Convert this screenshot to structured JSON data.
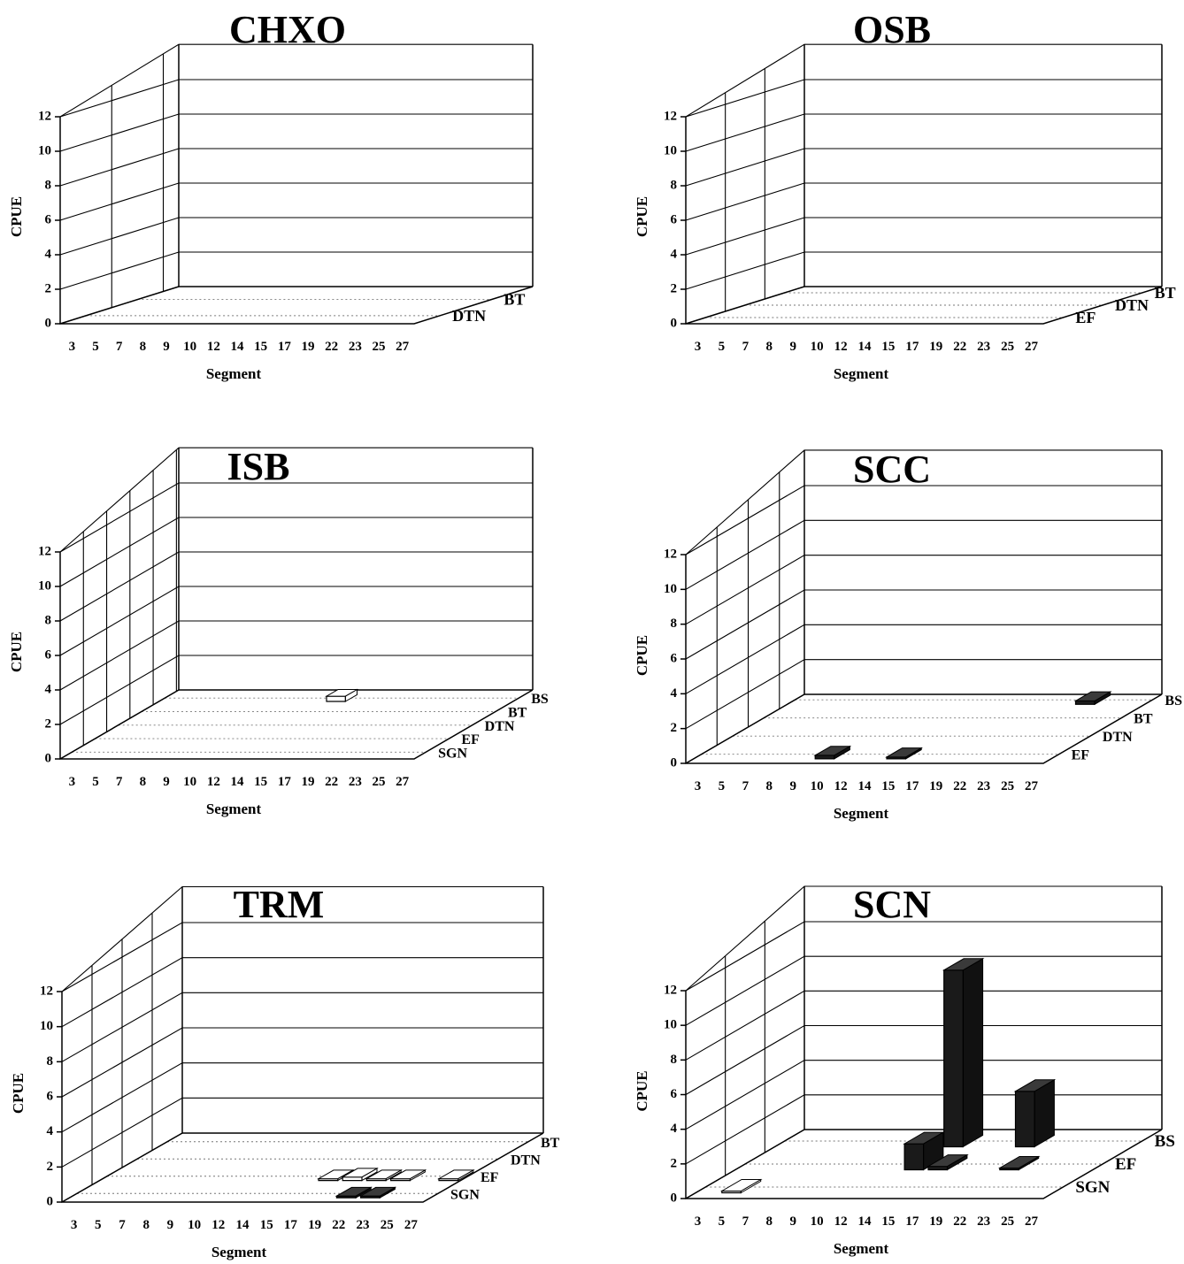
{
  "chart_data": [
    {
      "type": "bar3d",
      "title": "CHXO",
      "xlabel": "Segment",
      "ylabel": "CPUE",
      "categories": [
        "3",
        "5",
        "7",
        "8",
        "9",
        "10",
        "12",
        "14",
        "15",
        "17",
        "19",
        "22",
        "23",
        "25",
        "27"
      ],
      "depth": [
        "DTN",
        "BT"
      ],
      "yticks": [
        "0",
        "2",
        "4",
        "6",
        "8",
        "10",
        "12"
      ],
      "ylim": [
        0,
        12
      ],
      "bars": []
    },
    {
      "type": "bar3d",
      "title": "OSB",
      "xlabel": "Segment",
      "ylabel": "CPUE",
      "categories": [
        "3",
        "5",
        "7",
        "8",
        "9",
        "10",
        "12",
        "14",
        "15",
        "17",
        "19",
        "22",
        "23",
        "25",
        "27"
      ],
      "depth": [
        "EF",
        "DTN",
        "BT"
      ],
      "yticks": [
        "0",
        "2",
        "4",
        "6",
        "8",
        "10",
        "12"
      ],
      "ylim": [
        0,
        12
      ],
      "bars": []
    },
    {
      "type": "bar3d",
      "title": "ISB",
      "xlabel": "Segment",
      "ylabel": "CPUE",
      "categories": [
        "3",
        "5",
        "7",
        "8",
        "9",
        "10",
        "12",
        "14",
        "15",
        "17",
        "19",
        "22",
        "23",
        "25",
        "27"
      ],
      "depth": [
        "SGN",
        "EF",
        "DTN",
        "BT",
        "BS"
      ],
      "yticks": [
        "0",
        "2",
        "4",
        "6",
        "8",
        "10",
        "12"
      ],
      "ylim": [
        0,
        12
      ],
      "bars": [
        {
          "segment": "14",
          "gear": "BS",
          "value": 0.3,
          "fill": "open"
        }
      ]
    },
    {
      "type": "bar3d",
      "title": "SCC",
      "xlabel": "Segment",
      "ylabel": "CPUE",
      "categories": [
        "3",
        "5",
        "7",
        "8",
        "9",
        "10",
        "12",
        "14",
        "15",
        "17",
        "19",
        "22",
        "23",
        "25",
        "27"
      ],
      "depth": [
        "EF",
        "DTN",
        "BT",
        "BS"
      ],
      "yticks": [
        "0",
        "2",
        "4",
        "6",
        "8",
        "10",
        "12"
      ],
      "ylim": [
        0,
        12
      ],
      "bars": [
        {
          "segment": "10",
          "gear": "EF",
          "value": 0.2,
          "fill": "solid"
        },
        {
          "segment": "15",
          "gear": "EF",
          "value": 0.1,
          "fill": "solid"
        },
        {
          "segment": "23",
          "gear": "BS",
          "value": 0.2,
          "fill": "solid"
        }
      ]
    },
    {
      "type": "bar3d",
      "title": "TRM",
      "xlabel": "Segment",
      "ylabel": "CPUE",
      "categories": [
        "3",
        "5",
        "7",
        "8",
        "9",
        "10",
        "12",
        "14",
        "15",
        "17",
        "19",
        "22",
        "23",
        "25",
        "27"
      ],
      "depth": [
        "SGN",
        "EF",
        "DTN",
        "BT"
      ],
      "yticks": [
        "0",
        "2",
        "4",
        "6",
        "8",
        "10",
        "12"
      ],
      "ylim": [
        0,
        12
      ],
      "bars": [
        {
          "segment": "22",
          "gear": "SGN",
          "value": 0.1,
          "fill": "solid"
        },
        {
          "segment": "23",
          "gear": "SGN",
          "value": 0.1,
          "fill": "solid"
        },
        {
          "segment": "17",
          "gear": "EF",
          "value": 0.1,
          "fill": "open"
        },
        {
          "segment": "19",
          "gear": "EF",
          "value": 0.2,
          "fill": "open"
        },
        {
          "segment": "22",
          "gear": "EF",
          "value": 0.1,
          "fill": "open"
        },
        {
          "segment": "23",
          "gear": "EF",
          "value": 0.1,
          "fill": "open"
        },
        {
          "segment": "27",
          "gear": "EF",
          "value": 0.1,
          "fill": "open"
        }
      ]
    },
    {
      "type": "bar3d",
      "title": "SCN",
      "xlabel": "Segment",
      "ylabel": "CPUE",
      "categories": [
        "3",
        "5",
        "7",
        "8",
        "9",
        "10",
        "12",
        "14",
        "15",
        "17",
        "19",
        "22",
        "23",
        "25",
        "27"
      ],
      "depth": [
        "SGN",
        "EF",
        "BS"
      ],
      "yticks": [
        "0",
        "2",
        "4",
        "6",
        "8",
        "10",
        "12"
      ],
      "ylim": [
        0,
        12
      ],
      "bars": [
        {
          "segment": "5",
          "gear": "SGN",
          "value": 0.1,
          "fill": "open"
        },
        {
          "segment": "14",
          "gear": "EF",
          "value": 1.5,
          "fill": "solid"
        },
        {
          "segment": "15",
          "gear": "EF",
          "value": 0.2,
          "fill": "solid"
        },
        {
          "segment": "22",
          "gear": "EF",
          "value": 0.1,
          "fill": "solid"
        },
        {
          "segment": "12",
          "gear": "BS",
          "value": 0.1,
          "fill": "solid"
        },
        {
          "segment": "14",
          "gear": "BS",
          "value": 10.2,
          "fill": "solid"
        },
        {
          "segment": "19",
          "gear": "BS",
          "value": 3.2,
          "fill": "solid"
        }
      ]
    }
  ]
}
